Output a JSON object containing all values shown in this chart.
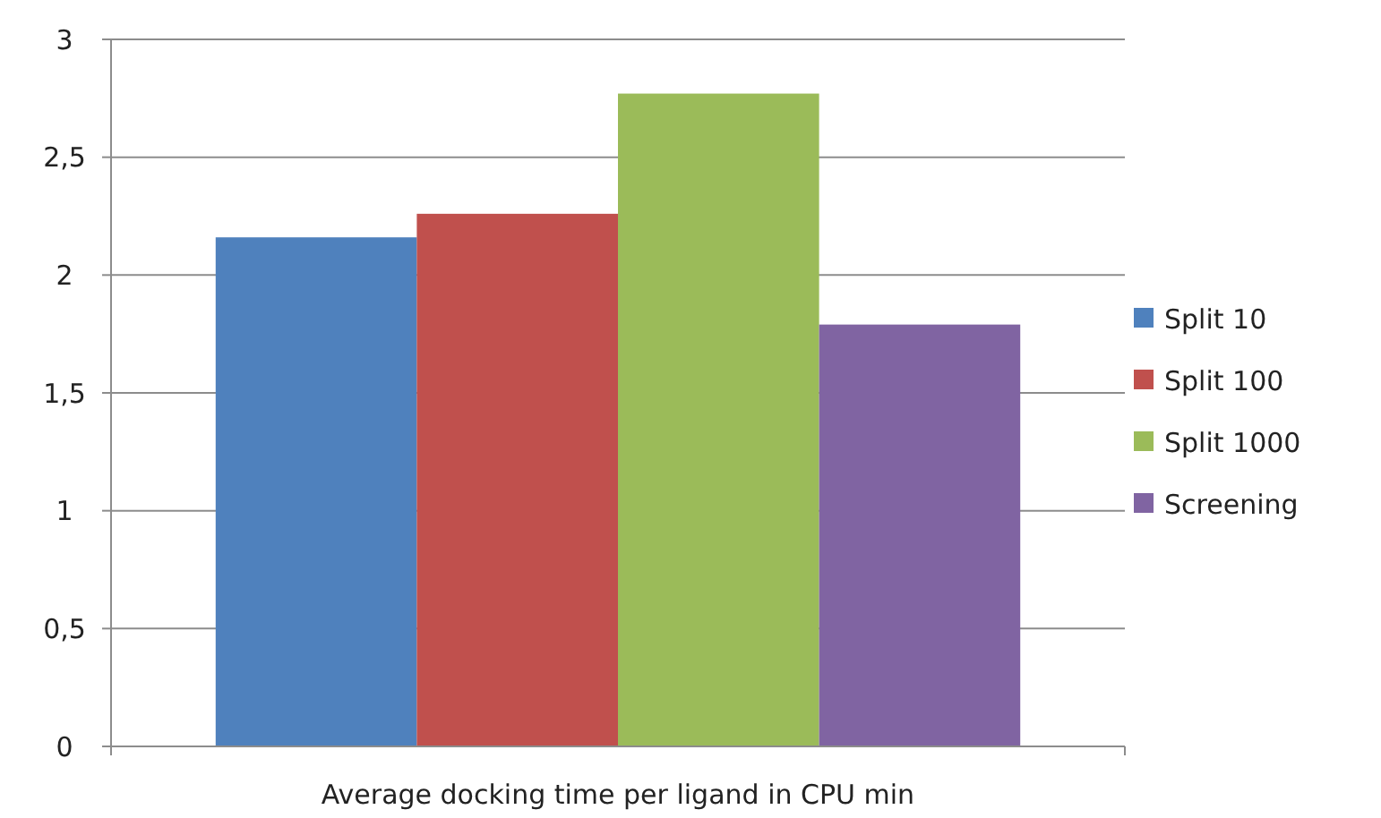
{
  "chart_data": {
    "type": "bar",
    "categories": [
      "Average docking time per ligand in CPU min"
    ],
    "series": [
      {
        "name": "Split 10",
        "color": "#4f81bd",
        "values": [
          2.16
        ]
      },
      {
        "name": "Split 100",
        "color": "#c0504d",
        "values": [
          2.26
        ]
      },
      {
        "name": "Split 1000",
        "color": "#9bbb59",
        "values": [
          2.77
        ]
      },
      {
        "name": "Screening",
        "color": "#8064a2",
        "values": [
          1.79
        ]
      }
    ],
    "ylim": [
      0,
      3
    ],
    "yticks": [
      0,
      {
        "value": 0.5,
        "label": "0,5"
      },
      1,
      {
        "value": 1.5,
        "label": "1,5"
      },
      2,
      {
        "value": 2.5,
        "label": "2,5"
      },
      3
    ],
    "grid": "y",
    "legend": "right"
  }
}
